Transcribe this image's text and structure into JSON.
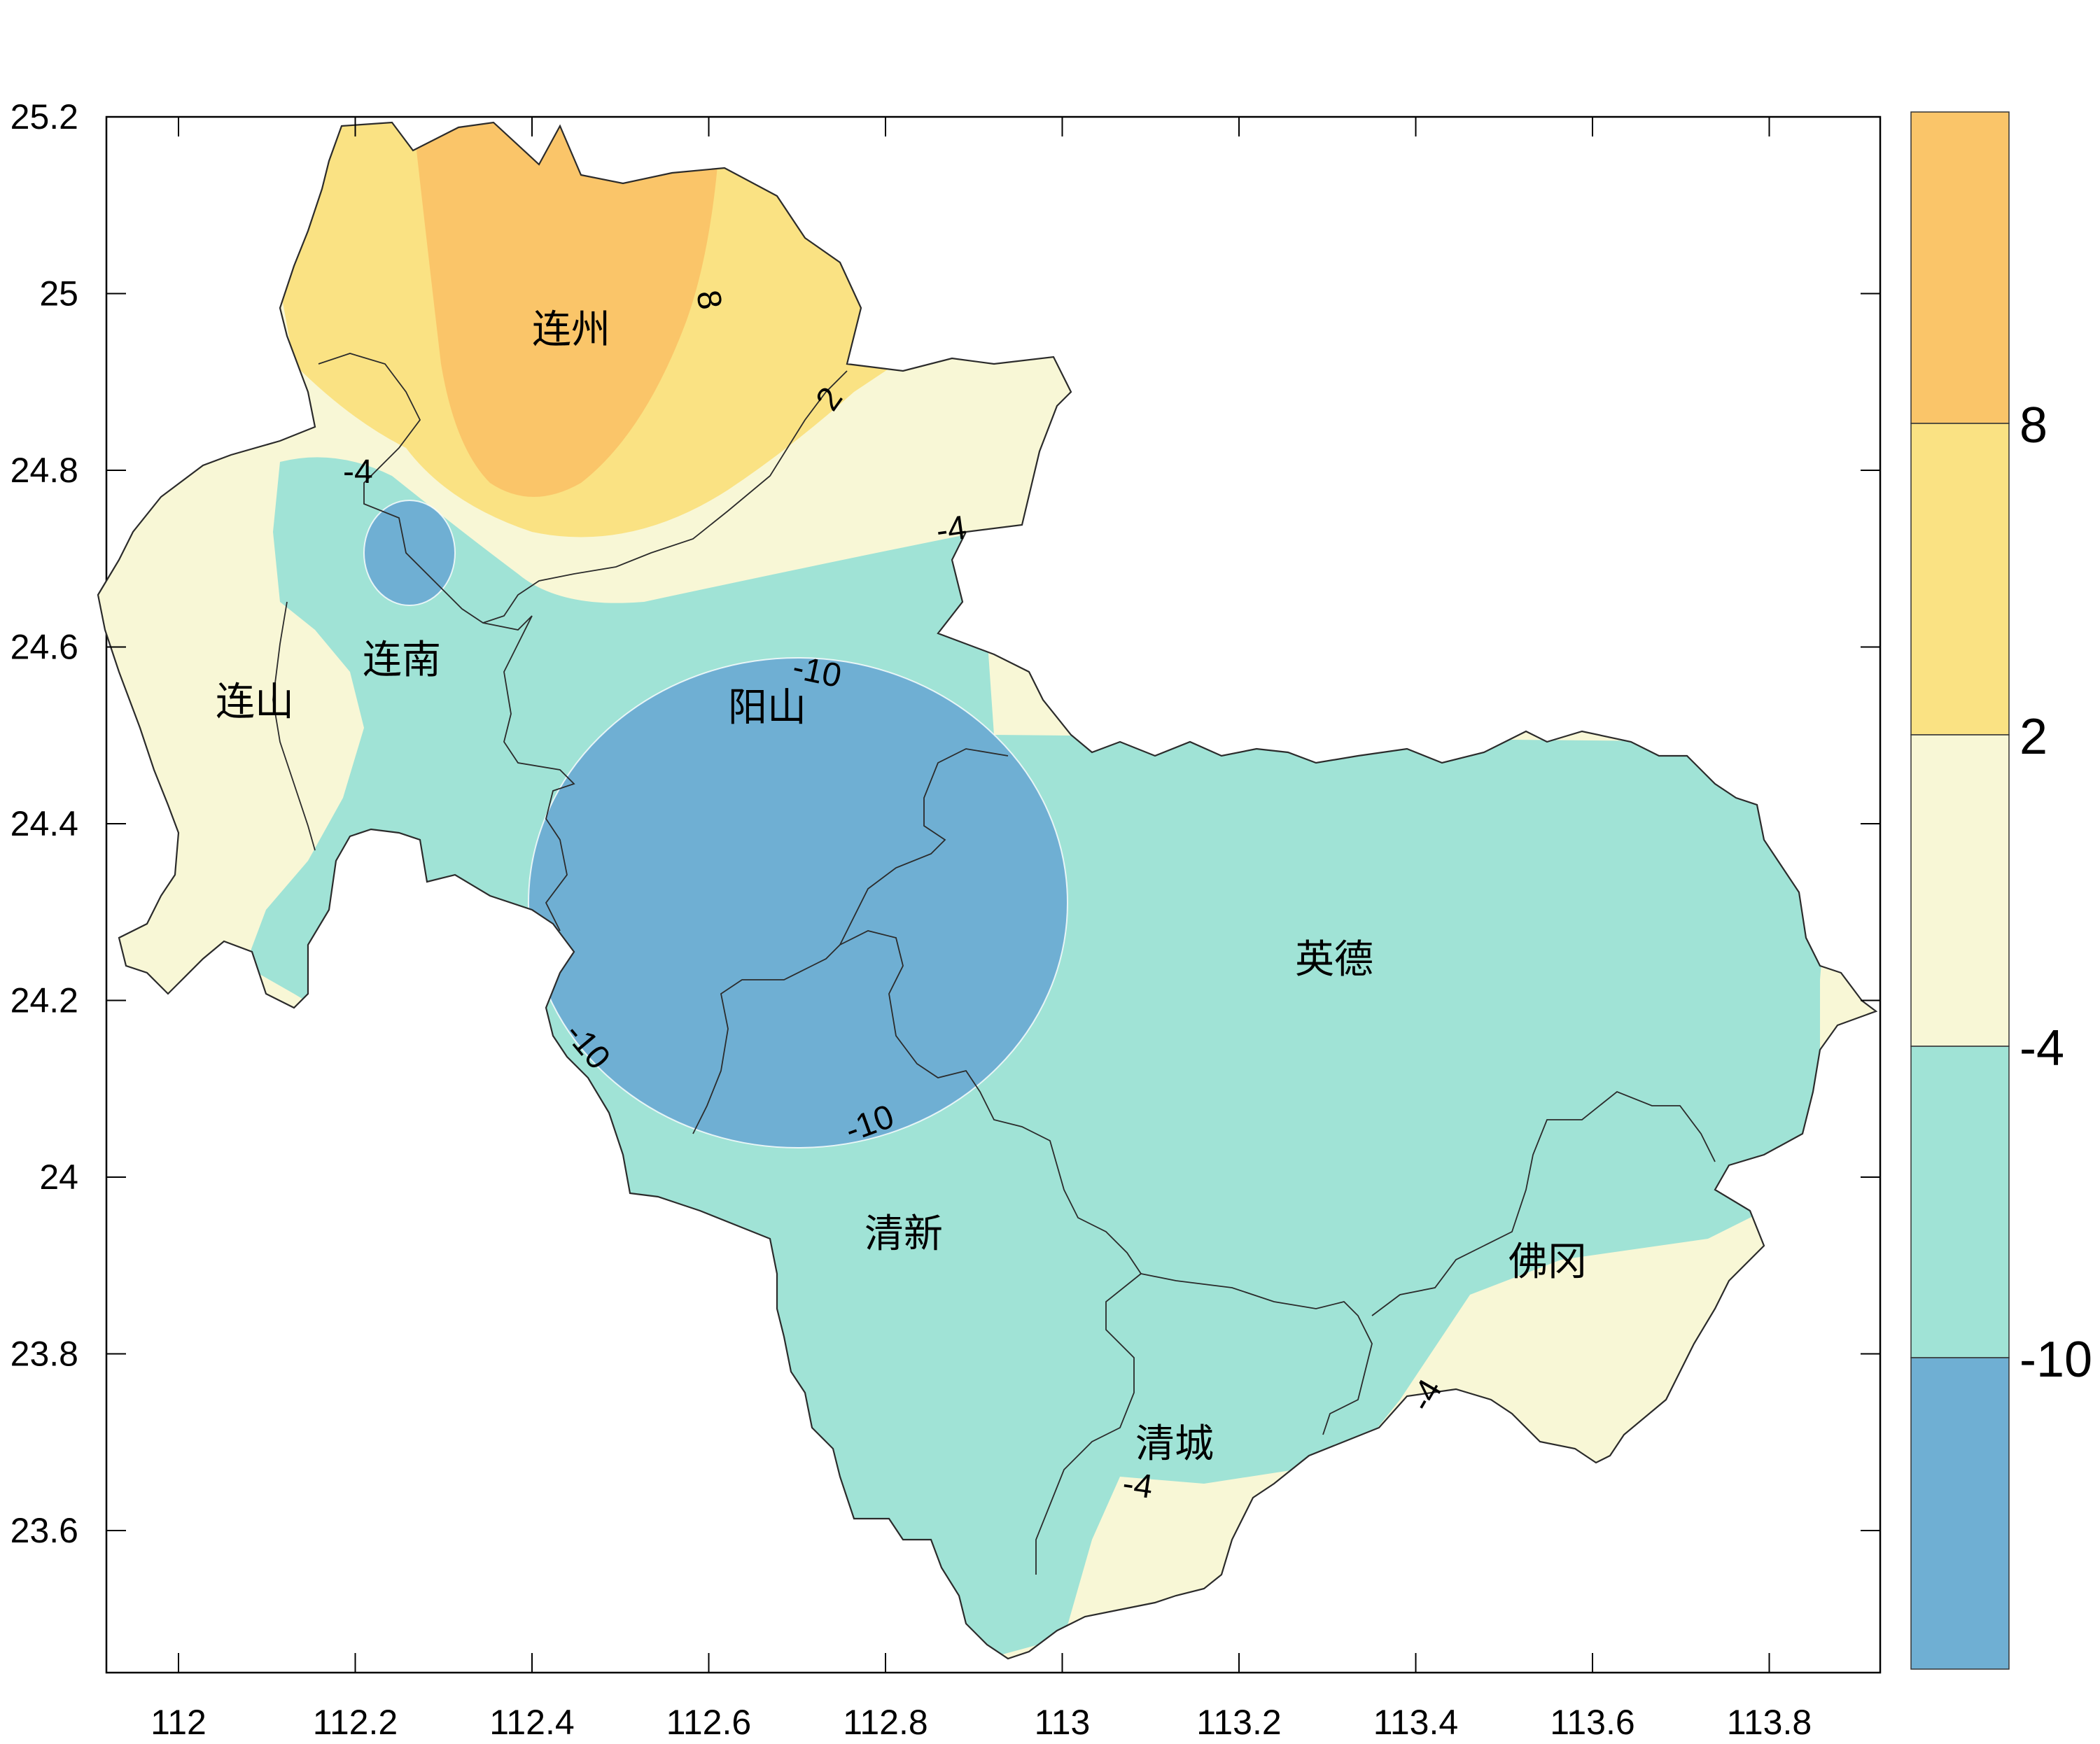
{
  "colors": {
    "below_-10": "#6fafd3",
    "-10_to_-4": "#a0e3d6",
    "-4_to_2": "#f8f7d6",
    "2_to_8": "#fae283",
    "above_8": "#fac569",
    "background": "#ffffff",
    "frame": "#000000"
  },
  "axes": {
    "x_ticks": [
      "112",
      "112.2",
      "112.4",
      "112.6",
      "112.8",
      "113",
      "113.2",
      "113.4",
      "113.6",
      "113.8"
    ],
    "y_ticks": [
      "25.2",
      "25",
      "24.8",
      "24.6",
      "24.4",
      "24.2",
      "24",
      "23.8",
      "23.6"
    ]
  },
  "colorbar": {
    "labels": [
      "8",
      "2",
      "-4",
      "-10"
    ]
  },
  "counties": [
    {
      "id": "lianzhou",
      "name": "连州"
    },
    {
      "id": "liannan",
      "name": "连南"
    },
    {
      "id": "lianshan",
      "name": "连山"
    },
    {
      "id": "yangshan",
      "name": "阳山"
    },
    {
      "id": "yingde",
      "name": "英德"
    },
    {
      "id": "qingxin",
      "name": "清新"
    },
    {
      "id": "fogang",
      "name": "佛冈"
    },
    {
      "id": "qingcheng",
      "name": "清城"
    }
  ],
  "contour_labels": [
    {
      "id": "c8",
      "text": "8"
    },
    {
      "id": "c2",
      "text": "2"
    },
    {
      "id": "cm4a",
      "text": "-4"
    },
    {
      "id": "cm4b",
      "text": "-4"
    },
    {
      "id": "cm10a",
      "text": "-10"
    },
    {
      "id": "cm10b",
      "text": "-10"
    },
    {
      "id": "cm10c",
      "text": "-10"
    },
    {
      "id": "cm4c",
      "text": "-4"
    },
    {
      "id": "cm4d",
      "text": "-4"
    }
  ]
}
